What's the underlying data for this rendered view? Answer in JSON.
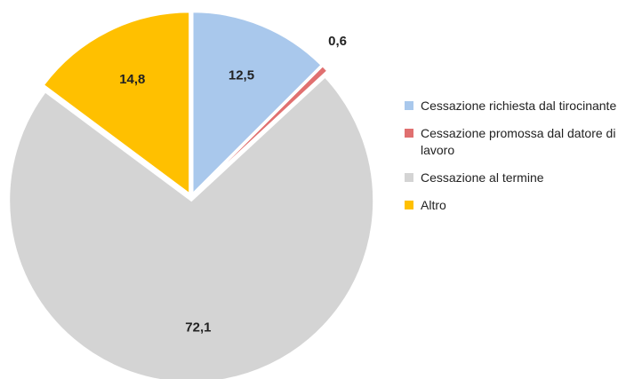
{
  "chart_data": {
    "type": "pie",
    "categories": [
      "Cessazione richiesta dal tirocinante",
      "Cessazione promossa dal datore di lavoro",
      "Cessazione al termine",
      "Altro"
    ],
    "values": [
      12.5,
      0.6,
      72.1,
      14.8
    ],
    "value_labels": [
      "12,5",
      "0,6",
      "72,1",
      "14,8"
    ],
    "colors": [
      "#a9c8ec",
      "#e07070",
      "#d4d4d4",
      "#ffc000"
    ],
    "legend": "right"
  }
}
